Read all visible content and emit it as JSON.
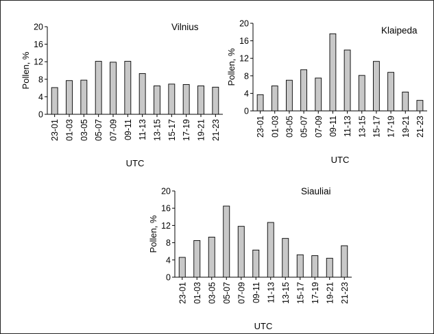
{
  "chart_data": [
    {
      "type": "bar",
      "title": "Vilnius",
      "xlabel": "UTC",
      "ylabel": "Pollen, %",
      "ylim": [
        0,
        20
      ],
      "yticks": [
        "0",
        "4",
        "8",
        "12",
        "16",
        "20"
      ],
      "categories": [
        "23-01",
        "01-03",
        "03-05",
        "05-07",
        "07-09",
        "09-11",
        "11-13",
        "13-15",
        "15-17",
        "17-19",
        "19-21",
        "21-23"
      ],
      "values": [
        6.1,
        7.7,
        7.8,
        12.1,
        11.9,
        12.1,
        9.3,
        6.5,
        6.9,
        6.8,
        6.5,
        6.2
      ],
      "bar_color": "#c8c8c8"
    },
    {
      "type": "bar",
      "title": "Klaipeda",
      "xlabel": "UTC",
      "ylabel": "Pollen, %",
      "ylim": [
        0,
        20
      ],
      "yticks": [
        "0",
        "4",
        "8",
        "12",
        "16",
        "20"
      ],
      "categories": [
        "23-01",
        "01-03",
        "03-05",
        "05-07",
        "07-09",
        "09-11",
        "11-13",
        "13-15",
        "15-17",
        "17-19",
        "19-21",
        "21-23"
      ],
      "values": [
        3.7,
        5.7,
        7.0,
        9.4,
        7.5,
        17.6,
        13.9,
        8.1,
        11.3,
        8.8,
        4.3,
        2.4
      ],
      "bar_color": "#c8c8c8"
    },
    {
      "type": "bar",
      "title": "Siauliai",
      "xlabel": "UTC",
      "ylabel": "Pollen, %",
      "ylim": [
        0,
        20
      ],
      "yticks": [
        "0",
        "4",
        "8",
        "12",
        "16",
        "20"
      ],
      "categories": [
        "23-01",
        "01-03",
        "03-05",
        "05-07",
        "07-09",
        "09-11",
        "11-13",
        "13-15",
        "15-17",
        "17-19",
        "19-21",
        "21-23"
      ],
      "values": [
        4.6,
        8.5,
        9.3,
        16.5,
        11.8,
        6.3,
        12.7,
        9.0,
        5.2,
        5.0,
        4.4,
        7.3
      ],
      "bar_color": "#c8c8c8"
    }
  ]
}
